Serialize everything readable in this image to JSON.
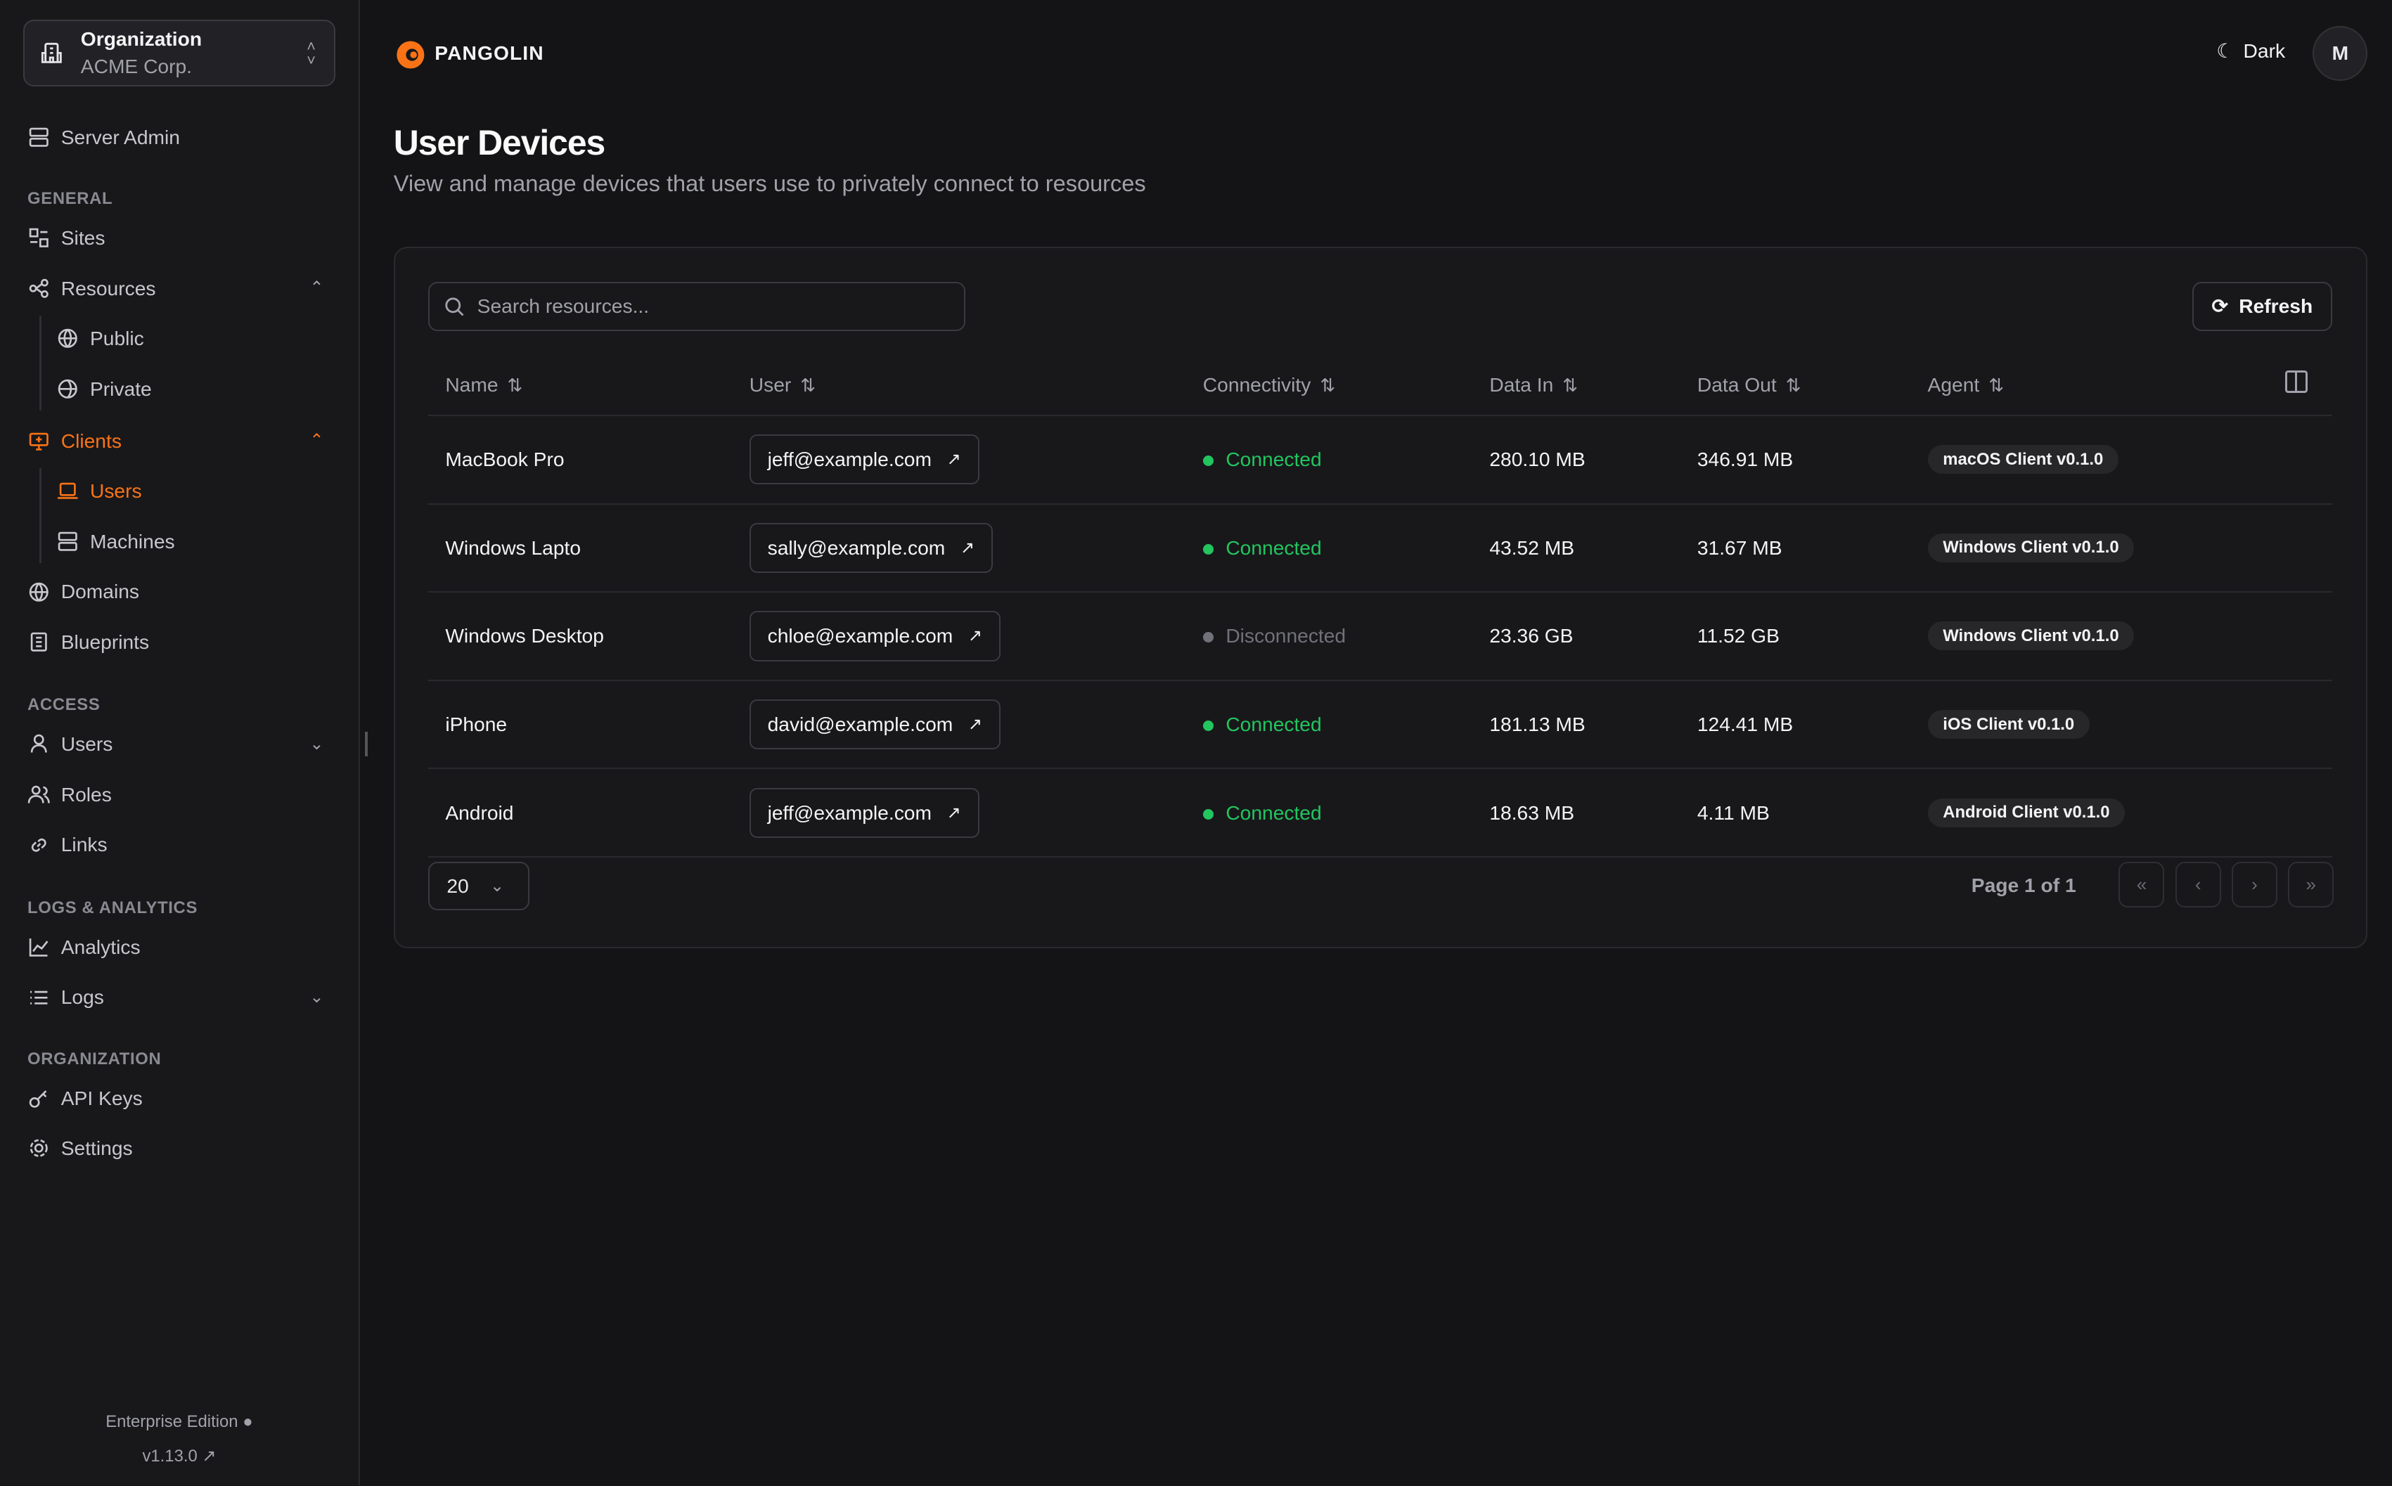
{
  "org": {
    "label": "Organization",
    "name": "ACME Corp."
  },
  "sidebar": {
    "server_admin": "Server Admin",
    "sections": {
      "general": "GENERAL",
      "access": "ACCESS",
      "logs": "LOGS & ANALYTICS",
      "organization": "ORGANIZATION"
    },
    "items": {
      "sites": "Sites",
      "resources": "Resources",
      "public": "Public",
      "private": "Private",
      "clients": "Clients",
      "users_sub": "Users",
      "machines": "Machines",
      "domains": "Domains",
      "blueprints": "Blueprints",
      "users": "Users",
      "roles": "Roles",
      "links": "Links",
      "analytics": "Analytics",
      "logs": "Logs",
      "api_keys": "API Keys",
      "settings": "Settings"
    },
    "edition": "Enterprise Edition",
    "version": "v1.13.0"
  },
  "header": {
    "brand": "PANGOLIN",
    "theme": "Dark",
    "avatar": "M"
  },
  "page": {
    "title": "User Devices",
    "subtitle": "View and manage devices that users use to privately connect to resources"
  },
  "toolbar": {
    "search_placeholder": "Search resources...",
    "refresh": "Refresh"
  },
  "table": {
    "columns": [
      "Name",
      "User",
      "Connectivity",
      "Data In",
      "Data Out",
      "Agent"
    ],
    "rows": [
      {
        "name": "MacBook Pro",
        "user": "jeff@example.com",
        "status": "Connected",
        "in": "280.10 MB",
        "out": "346.91 MB",
        "agent": "macOS Client v0.1.0"
      },
      {
        "name": "Windows Lapto",
        "user": "sally@example.com",
        "status": "Connected",
        "in": "43.52 MB",
        "out": "31.67 MB",
        "agent": "Windows Client v0.1.0"
      },
      {
        "name": "Windows Desktop",
        "user": "chloe@example.com",
        "status": "Disconnected",
        "in": "23.36 GB",
        "out": "11.52 GB",
        "agent": "Windows Client v0.1.0"
      },
      {
        "name": "iPhone",
        "user": "david@example.com",
        "status": "Connected",
        "in": "181.13 MB",
        "out": "124.41 MB",
        "agent": "iOS Client v0.1.0"
      },
      {
        "name": "Android",
        "user": "jeff@example.com",
        "status": "Connected",
        "in": "18.63 MB",
        "out": "4.11 MB",
        "agent": "Android Client v0.1.0"
      }
    ]
  },
  "pagination": {
    "page_size": "20",
    "page_info": "Page 1 of 1"
  },
  "colors": {
    "accent": "#f97316",
    "connected": "#22c55e",
    "disconnected": "#71717a"
  }
}
